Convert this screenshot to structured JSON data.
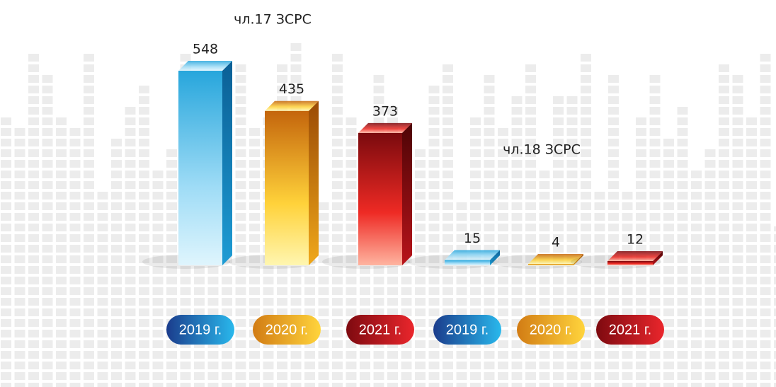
{
  "chart_data": [
    {
      "type": "bar",
      "title": "чл.17 ЗСРС",
      "categories": [
        "2019 г.",
        "2020 г.",
        "2021 г."
      ],
      "values": [
        548,
        435,
        373
      ],
      "colors": [
        "blue",
        "gold",
        "red"
      ]
    },
    {
      "type": "bar",
      "title": "чл.18 ЗСРС",
      "categories": [
        "2019 г.",
        "2020 г.",
        "2021 г."
      ],
      "values": [
        15,
        4,
        12
      ],
      "colors": [
        "blue",
        "gold",
        "red"
      ]
    }
  ]
}
